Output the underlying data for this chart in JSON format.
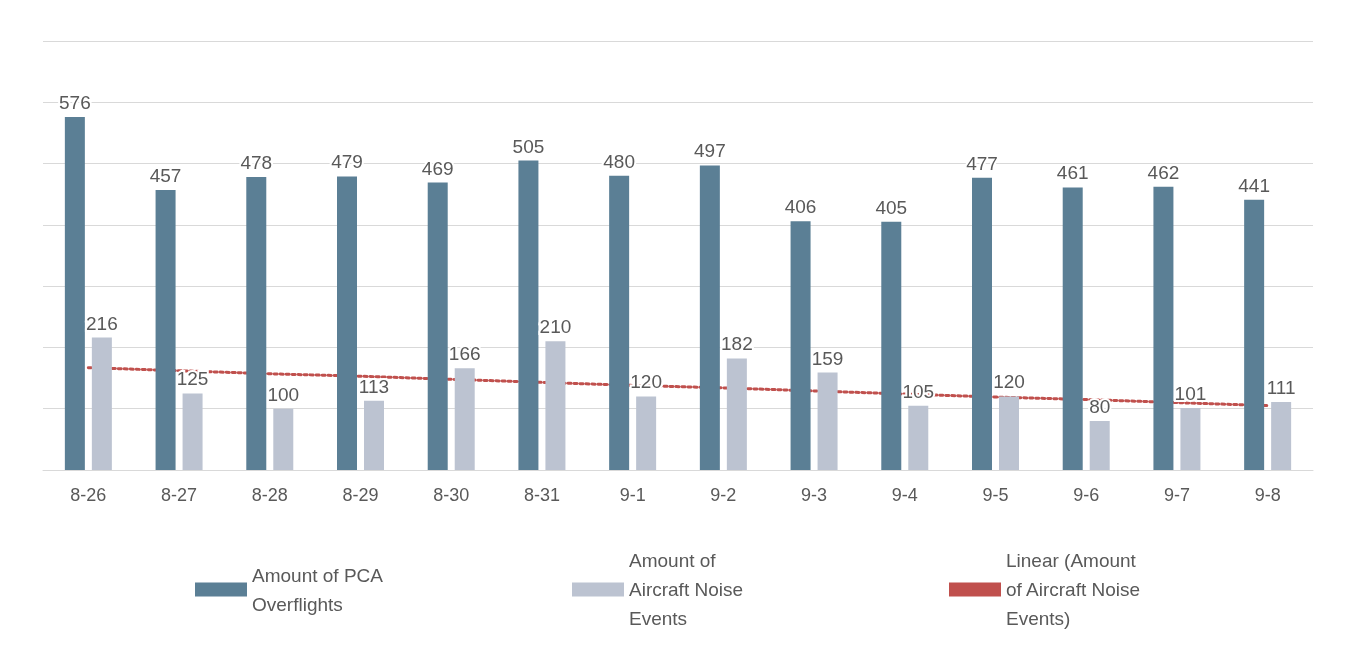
{
  "chart_data": {
    "type": "bar",
    "categories": [
      "8-26",
      "8-27",
      "8-28",
      "8-29",
      "8-30",
      "8-31",
      "9-1",
      "9-2",
      "9-3",
      "9-4",
      "9-5",
      "9-6",
      "9-7",
      "9-8"
    ],
    "series": [
      {
        "name": "Amount of PCA Overflights",
        "color": "#5b7f95",
        "values": [
          576,
          457,
          478,
          479,
          469,
          505,
          480,
          497,
          406,
          405,
          477,
          461,
          462,
          441
        ]
      },
      {
        "name": "Amount of Aircraft Noise Events",
        "color": "#bcc3d1",
        "values": [
          216,
          125,
          100,
          113,
          166,
          210,
          120,
          182,
          159,
          105,
          120,
          80,
          101,
          111
        ]
      },
      {
        "name": "Linear (Amount of Aircraft Noise Events)",
        "type": "line",
        "color": "#c0504d",
        "line_style": "dotted",
        "marker": "none",
        "data_labels": false,
        "values": [
          167,
          162,
          157,
          153,
          148,
          143,
          138,
          134,
          129,
          124,
          119,
          115,
          110,
          105
        ]
      }
    ],
    "data_labels": true,
    "ylim": [
      0,
      700
    ],
    "yticks": [
      0,
      100,
      200,
      300,
      400,
      500,
      600,
      700
    ],
    "tick_labels": "x",
    "grid": "y",
    "legend": "bottom"
  }
}
